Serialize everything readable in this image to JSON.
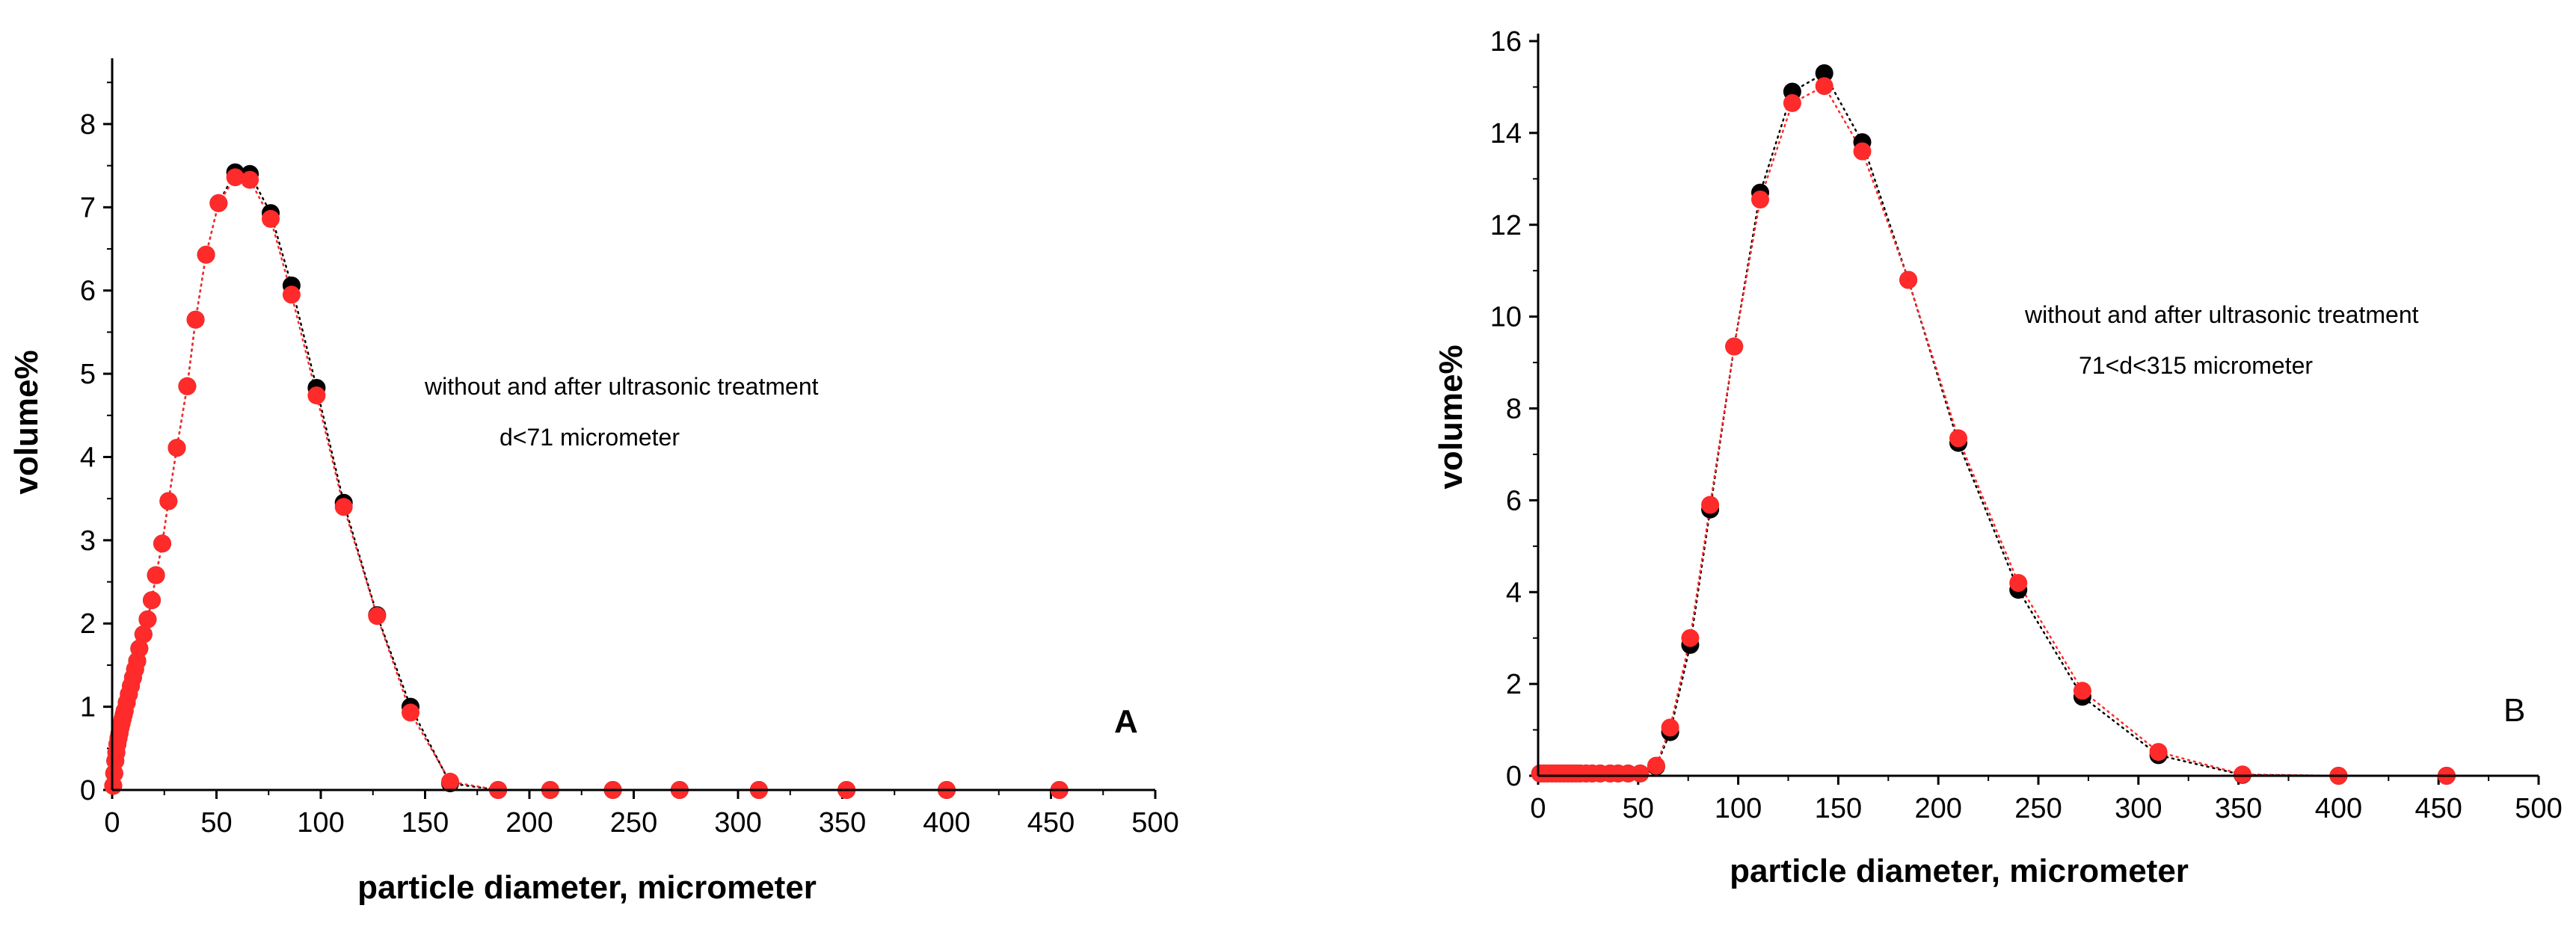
{
  "chart_data": [
    {
      "type": "scatter",
      "panel_label": "A",
      "xlabel": "particle diameter, micrometer",
      "ylabel": "volume%",
      "xlim": [
        0,
        500
      ],
      "ylim": [
        0,
        8.7
      ],
      "xticks": [
        0,
        50,
        100,
        150,
        200,
        250,
        300,
        350,
        400,
        450,
        500
      ],
      "yticks": [
        0,
        1,
        2,
        3,
        4,
        5,
        6,
        7,
        8
      ],
      "annotations": [
        "without and after ultrasonic treatment",
        "d<71 micrometer"
      ],
      "series": [
        {
          "name": "without ultrasonic treatment",
          "color": "#000000",
          "line_style": "dotted",
          "points": [
            [
              0.5,
              0.05
            ],
            [
              1,
              0.2
            ],
            [
              1.5,
              0.35
            ],
            [
              2,
              0.45
            ],
            [
              2.5,
              0.55
            ],
            [
              3,
              0.62
            ],
            [
              3.5,
              0.68
            ],
            [
              4,
              0.75
            ],
            [
              4.5,
              0.8
            ],
            [
              5,
              0.85
            ],
            [
              5.5,
              0.9
            ],
            [
              6,
              0.95
            ],
            [
              7,
              1.05
            ],
            [
              8,
              1.15
            ],
            [
              9,
              1.25
            ],
            [
              10,
              1.35
            ],
            [
              11,
              1.45
            ],
            [
              12,
              1.55
            ],
            [
              13,
              1.7
            ],
            [
              15,
              1.87
            ],
            [
              17,
              2.05
            ],
            [
              19,
              2.28
            ],
            [
              21,
              2.58
            ],
            [
              24,
              2.96
            ],
            [
              27,
              3.47
            ],
            [
              31,
              4.11
            ],
            [
              36,
              4.85
            ],
            [
              40,
              5.65
            ],
            [
              45,
              6.43
            ],
            [
              51,
              7.05
            ],
            [
              59,
              7.42
            ],
            [
              66,
              7.4
            ],
            [
              76,
              6.93
            ],
            [
              86,
              6.06
            ],
            [
              98,
              4.83
            ],
            [
              111,
              3.45
            ],
            [
              127,
              2.1
            ],
            [
              143,
              1.0
            ],
            [
              162,
              0.08
            ],
            [
              185,
              0.0
            ],
            [
              210,
              0.0
            ],
            [
              240,
              0.0
            ],
            [
              272,
              0.0
            ],
            [
              310,
              0.0
            ],
            [
              352,
              0.0
            ],
            [
              400,
              0.0
            ],
            [
              454,
              0.0
            ]
          ]
        },
        {
          "name": "after ultrasonic treatment",
          "color": "#ff2a2a",
          "line_style": "dotted",
          "points": [
            [
              0.5,
              0.05
            ],
            [
              1,
              0.2
            ],
            [
              1.5,
              0.35
            ],
            [
              2,
              0.45
            ],
            [
              2.5,
              0.55
            ],
            [
              3,
              0.62
            ],
            [
              3.5,
              0.68
            ],
            [
              4,
              0.75
            ],
            [
              4.5,
              0.8
            ],
            [
              5,
              0.85
            ],
            [
              5.5,
              0.9
            ],
            [
              6,
              0.95
            ],
            [
              7,
              1.05
            ],
            [
              8,
              1.15
            ],
            [
              9,
              1.25
            ],
            [
              10,
              1.35
            ],
            [
              11,
              1.45
            ],
            [
              12,
              1.55
            ],
            [
              13,
              1.7
            ],
            [
              15,
              1.87
            ],
            [
              17,
              2.05
            ],
            [
              19,
              2.28
            ],
            [
              21,
              2.58
            ],
            [
              24,
              2.96
            ],
            [
              27,
              3.47
            ],
            [
              31,
              4.11
            ],
            [
              36,
              4.85
            ],
            [
              40,
              5.65
            ],
            [
              45,
              6.43
            ],
            [
              51,
              7.05
            ],
            [
              59,
              7.36
            ],
            [
              66,
              7.33
            ],
            [
              76,
              6.86
            ],
            [
              86,
              5.95
            ],
            [
              98,
              4.74
            ],
            [
              111,
              3.4
            ],
            [
              127,
              2.09
            ],
            [
              143,
              0.93
            ],
            [
              162,
              0.1
            ],
            [
              185,
              0.0
            ],
            [
              210,
              0.0
            ],
            [
              240,
              0.0
            ],
            [
              272,
              0.0
            ],
            [
              310,
              0.0
            ],
            [
              352,
              0.0
            ],
            [
              400,
              0.0
            ],
            [
              454,
              0.0
            ]
          ]
        }
      ]
    },
    {
      "type": "scatter",
      "panel_label": "B",
      "xlabel": "particle diameter, micrometer",
      "ylabel": "volume%",
      "xlim": [
        0,
        500
      ],
      "ylim": [
        0,
        16
      ],
      "xticks": [
        0,
        50,
        100,
        150,
        200,
        250,
        300,
        350,
        400,
        450,
        500
      ],
      "yticks": [
        0,
        2,
        4,
        6,
        8,
        10,
        12,
        14,
        16
      ],
      "annotations": [
        "without and after ultrasonic treatment",
        "71<d<315 micrometer"
      ],
      "series": [
        {
          "name": "without ultrasonic treatment",
          "color": "#000000",
          "line_style": "dotted",
          "points": [
            [
              1,
              0.05
            ],
            [
              3,
              0.05
            ],
            [
              5,
              0.05
            ],
            [
              7,
              0.05
            ],
            [
              9,
              0.05
            ],
            [
              11,
              0.05
            ],
            [
              13,
              0.05
            ],
            [
              15,
              0.05
            ],
            [
              17,
              0.05
            ],
            [
              19,
              0.05
            ],
            [
              21,
              0.05
            ],
            [
              24,
              0.05
            ],
            [
              27,
              0.05
            ],
            [
              31,
              0.05
            ],
            [
              36,
              0.05
            ],
            [
              40,
              0.05
            ],
            [
              45,
              0.05
            ],
            [
              51,
              0.05
            ],
            [
              59,
              0.2
            ],
            [
              66,
              0.95
            ],
            [
              76,
              2.85
            ],
            [
              86,
              5.8
            ],
            [
              98,
              9.35
            ],
            [
              111,
              12.7
            ],
            [
              127,
              14.9
            ],
            [
              143,
              15.3
            ],
            [
              162,
              13.8
            ],
            [
              185,
              10.8
            ],
            [
              210,
              7.25
            ],
            [
              240,
              4.05
            ],
            [
              272,
              1.72
            ],
            [
              310,
              0.45
            ],
            [
              352,
              0.02
            ],
            [
              400,
              0.0
            ],
            [
              454,
              0.0
            ]
          ]
        },
        {
          "name": "after ultrasonic treatment",
          "color": "#ff2a2a",
          "line_style": "dotted",
          "points": [
            [
              1,
              0.05
            ],
            [
              3,
              0.05
            ],
            [
              5,
              0.05
            ],
            [
              7,
              0.05
            ],
            [
              9,
              0.05
            ],
            [
              11,
              0.05
            ],
            [
              13,
              0.05
            ],
            [
              15,
              0.05
            ],
            [
              17,
              0.05
            ],
            [
              19,
              0.05
            ],
            [
              21,
              0.05
            ],
            [
              24,
              0.05
            ],
            [
              27,
              0.05
            ],
            [
              31,
              0.05
            ],
            [
              36,
              0.05
            ],
            [
              40,
              0.05
            ],
            [
              45,
              0.05
            ],
            [
              51,
              0.05
            ],
            [
              59,
              0.22
            ],
            [
              66,
              1.05
            ],
            [
              76,
              3.0
            ],
            [
              86,
              5.9
            ],
            [
              98,
              9.35
            ],
            [
              111,
              12.55
            ],
            [
              127,
              14.65
            ],
            [
              143,
              15.02
            ],
            [
              162,
              13.6
            ],
            [
              185,
              10.8
            ],
            [
              210,
              7.35
            ],
            [
              240,
              4.2
            ],
            [
              272,
              1.85
            ],
            [
              310,
              0.52
            ],
            [
              352,
              0.03
            ],
            [
              400,
              0.0
            ],
            [
              454,
              0.0
            ]
          ]
        }
      ]
    }
  ]
}
